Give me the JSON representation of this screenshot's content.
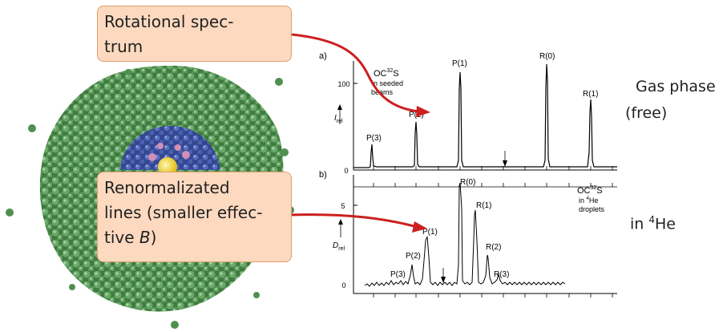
{
  "callouts": {
    "rotational_line1": "Rotational spec-",
    "rotational_line2": "trum",
    "renorm_line1": "Renormalizated",
    "renorm_line2": "lines (smaller effec-",
    "renorm_line3_pre": "tive ",
    "renorm_line3_var": "B",
    "renorm_line3_post": ")"
  },
  "side_labels": {
    "gas_phase": "Gas phase",
    "free": "(free)",
    "helium_pre": "in ",
    "helium_sup": "4",
    "helium_post": "He"
  },
  "spectrum_a": {
    "panel_label": "a)",
    "y_tick_top": "100",
    "y_tick_zero": "0",
    "y_label": "I",
    "y_label_sub": "rel",
    "species_line1": "OC",
    "species_sup": "32",
    "species_s": "S",
    "species_line2": "in seeded",
    "species_line3": "beams",
    "peaks": [
      "P(3)",
      "P(2)",
      "P(1)",
      "R(0)",
      "R(1)"
    ]
  },
  "spectrum_b": {
    "panel_label": "b)",
    "y_tick_top": "5",
    "y_tick_zero": "0",
    "y_label": "D",
    "y_label_sub": "rel",
    "species_line1": "OC",
    "species_sup": "32",
    "species_s": "S",
    "species_line2_pre": "in ",
    "species_line2_sup": "4",
    "species_line2_post": "He",
    "species_line3": "droplets",
    "peaks": [
      "P(3)",
      "P(2)",
      "P(1)",
      "R(0)",
      "R(1)",
      "R(2)",
      "R(3)"
    ]
  },
  "colors": {
    "arrow": "#cc1f1f",
    "callout_fill": "#fcd9bf",
    "cluster_outer": "#4e8a4e",
    "cluster_inner": "#3a4d9a",
    "core": "#f0d22a"
  }
}
